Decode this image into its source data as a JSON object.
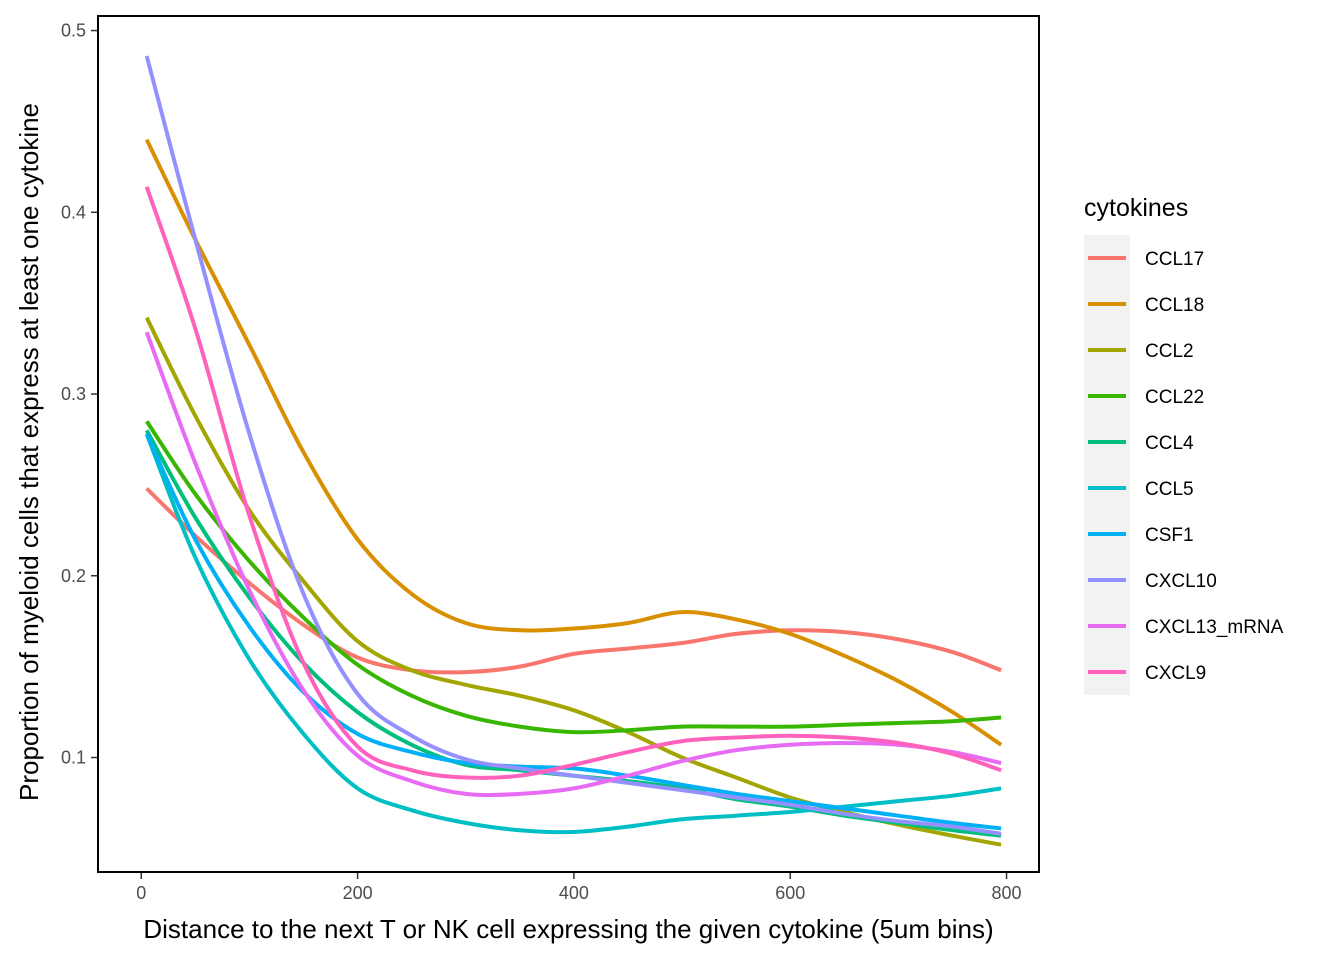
{
  "chart_data": {
    "type": "line",
    "xlabel": "Distance to the next T or NK cell expressing the given cytokine (5um bins)",
    "ylabel": "Proportion of myeloid cells that express at least one cytokine",
    "xlim": [
      -40,
      830
    ],
    "ylim": [
      0.037,
      0.508
    ],
    "x_ticks": [
      0,
      200,
      400,
      600,
      800
    ],
    "y_ticks": [
      0.1,
      0.2,
      0.3,
      0.4,
      0.5
    ],
    "x_tick_labels": [
      "0",
      "200",
      "400",
      "600",
      "800"
    ],
    "y_tick_labels": [
      "0.1",
      "0.2",
      "0.3",
      "0.4",
      "0.5"
    ],
    "grid": false,
    "legend_position": "right",
    "legend_title": "cytokines",
    "series": [
      {
        "name": "CCL17",
        "color": "#F8766D",
        "x": [
          5,
          50,
          100,
          150,
          200,
          250,
          300,
          350,
          400,
          450,
          500,
          550,
          600,
          650,
          700,
          750,
          795
        ],
        "y": [
          0.248,
          0.222,
          0.196,
          0.173,
          0.155,
          0.148,
          0.147,
          0.15,
          0.157,
          0.16,
          0.163,
          0.168,
          0.17,
          0.169,
          0.165,
          0.158,
          0.148
        ]
      },
      {
        "name": "CCL18",
        "color": "#D89000",
        "x": [
          5,
          50,
          100,
          150,
          200,
          250,
          300,
          350,
          400,
          450,
          500,
          550,
          600,
          650,
          700,
          750,
          795
        ],
        "y": [
          0.44,
          0.385,
          0.327,
          0.268,
          0.22,
          0.19,
          0.174,
          0.17,
          0.171,
          0.174,
          0.18,
          0.176,
          0.168,
          0.156,
          0.142,
          0.125,
          0.107
        ]
      },
      {
        "name": "CCL2",
        "color": "#A3A500",
        "x": [
          5,
          50,
          100,
          150,
          200,
          250,
          300,
          350,
          400,
          450,
          500,
          550,
          600,
          650,
          700,
          750,
          795
        ],
        "y": [
          0.342,
          0.288,
          0.236,
          0.197,
          0.164,
          0.148,
          0.14,
          0.134,
          0.126,
          0.114,
          0.1,
          0.089,
          0.078,
          0.07,
          0.063,
          0.057,
          0.052
        ]
      },
      {
        "name": "CCL22",
        "color": "#39B600",
        "x": [
          5,
          50,
          100,
          150,
          200,
          250,
          300,
          350,
          400,
          450,
          500,
          550,
          600,
          650,
          700,
          750,
          795
        ],
        "y": [
          0.285,
          0.245,
          0.208,
          0.177,
          0.151,
          0.134,
          0.123,
          0.117,
          0.114,
          0.115,
          0.117,
          0.117,
          0.117,
          0.118,
          0.119,
          0.12,
          0.122
        ]
      },
      {
        "name": "CCL4",
        "color": "#00BF7D",
        "x": [
          5,
          50,
          100,
          150,
          200,
          250,
          300,
          350,
          400,
          450,
          500,
          550,
          600,
          650,
          700,
          750,
          795
        ],
        "y": [
          0.28,
          0.232,
          0.188,
          0.152,
          0.125,
          0.107,
          0.096,
          0.093,
          0.09,
          0.087,
          0.083,
          0.077,
          0.073,
          0.068,
          0.064,
          0.06,
          0.057
        ]
      },
      {
        "name": "CCL5",
        "color": "#00BFC4",
        "x": [
          5,
          50,
          100,
          150,
          200,
          250,
          300,
          350,
          400,
          450,
          500,
          550,
          600,
          650,
          700,
          750,
          795
        ],
        "y": [
          0.278,
          0.21,
          0.154,
          0.113,
          0.083,
          0.071,
          0.064,
          0.06,
          0.059,
          0.062,
          0.066,
          0.068,
          0.07,
          0.073,
          0.076,
          0.079,
          0.083
        ]
      },
      {
        "name": "CSF1",
        "color": "#00B0F6",
        "x": [
          5,
          50,
          100,
          150,
          200,
          250,
          300,
          350,
          400,
          450,
          500,
          550,
          600,
          650,
          700,
          750,
          795
        ],
        "y": [
          0.278,
          0.22,
          0.172,
          0.136,
          0.113,
          0.103,
          0.097,
          0.095,
          0.094,
          0.09,
          0.085,
          0.08,
          0.076,
          0.072,
          0.068,
          0.064,
          0.061
        ]
      },
      {
        "name": "CXCL10",
        "color": "#9590FF",
        "x": [
          5,
          50,
          100,
          150,
          200,
          250,
          300,
          350,
          400,
          450,
          500,
          550,
          600,
          650,
          700,
          750,
          795
        ],
        "y": [
          0.486,
          0.385,
          0.278,
          0.19,
          0.135,
          0.112,
          0.099,
          0.094,
          0.09,
          0.086,
          0.082,
          0.078,
          0.074,
          0.069,
          0.065,
          0.062,
          0.058
        ]
      },
      {
        "name": "CXCL13_mRNA",
        "color": "#E76BF3",
        "x": [
          5,
          50,
          100,
          150,
          200,
          250,
          300,
          350,
          400,
          450,
          500,
          550,
          600,
          650,
          700,
          750,
          795
        ],
        "y": [
          0.334,
          0.262,
          0.192,
          0.137,
          0.101,
          0.087,
          0.08,
          0.08,
          0.083,
          0.09,
          0.098,
          0.104,
          0.107,
          0.108,
          0.107,
          0.103,
          0.097
        ]
      },
      {
        "name": "CXCL9",
        "color": "#FF62BC",
        "x": [
          5,
          50,
          100,
          150,
          200,
          250,
          300,
          350,
          400,
          450,
          500,
          550,
          600,
          650,
          700,
          750,
          795
        ],
        "y": [
          0.414,
          0.336,
          0.233,
          0.152,
          0.106,
          0.093,
          0.089,
          0.09,
          0.096,
          0.103,
          0.109,
          0.111,
          0.112,
          0.111,
          0.108,
          0.102,
          0.093
        ]
      }
    ]
  }
}
